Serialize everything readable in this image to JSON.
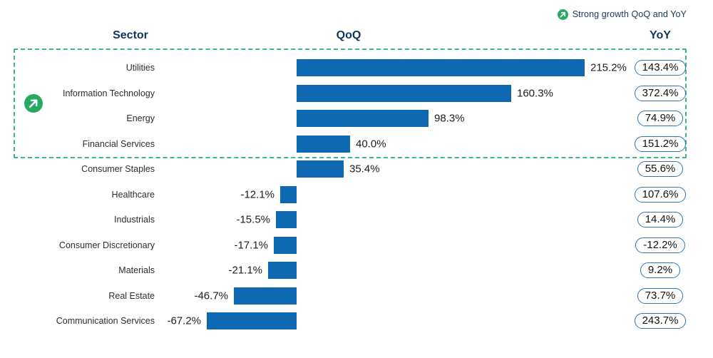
{
  "legend": {
    "icon": "arrow-up-right-icon",
    "label": "Strong growth QoQ and YoY"
  },
  "headers": {
    "sector": "Sector",
    "qoq": "QoQ",
    "yoy": "YoY"
  },
  "colors": {
    "bar_blue": "#0f69b2",
    "header_navy": "#10365e",
    "highlight_box_dash": "#3cb48c",
    "icon_green": "#27a963",
    "badge_border_blue": "#2e75b6"
  },
  "rows": [
    {
      "sector": "Utilities",
      "qoq": 215.2,
      "qoq_label": "215.2%",
      "yoy_label": "143.4%",
      "highlighted": true
    },
    {
      "sector": "Information Technology",
      "qoq": 160.3,
      "qoq_label": "160.3%",
      "yoy_label": "372.4%",
      "highlighted": true
    },
    {
      "sector": "Energy",
      "qoq": 98.3,
      "qoq_label": "98.3%",
      "yoy_label": "74.9%",
      "highlighted": true
    },
    {
      "sector": "Financial Services",
      "qoq": 40.0,
      "qoq_label": "40.0%",
      "yoy_label": "151.2%",
      "highlighted": true
    },
    {
      "sector": "Consumer Staples",
      "qoq": 35.4,
      "qoq_label": "35.4%",
      "yoy_label": "55.6%",
      "highlighted": false
    },
    {
      "sector": "Healthcare",
      "qoq": -12.1,
      "qoq_label": "-12.1%",
      "yoy_label": "107.6%",
      "highlighted": false
    },
    {
      "sector": "Industrials",
      "qoq": -15.5,
      "qoq_label": "-15.5%",
      "yoy_label": "14.4%",
      "highlighted": false
    },
    {
      "sector": "Consumer Discretionary",
      "qoq": -17.1,
      "qoq_label": "-17.1%",
      "yoy_label": "-12.2%",
      "highlighted": false
    },
    {
      "sector": "Materials",
      "qoq": -21.1,
      "qoq_label": "-21.1%",
      "yoy_label": "9.2%",
      "highlighted": false
    },
    {
      "sector": "Real Estate",
      "qoq": -46.7,
      "qoq_label": "-46.7%",
      "yoy_label": "73.7%",
      "highlighted": false
    },
    {
      "sector": "Communication Services",
      "qoq": -67.2,
      "qoq_label": "-67.2%",
      "yoy_label": "243.7%",
      "highlighted": false
    }
  ],
  "chart_data": {
    "type": "bar",
    "orientation": "horizontal",
    "title": "",
    "categories": [
      "Utilities",
      "Information Technology",
      "Energy",
      "Financial Services",
      "Consumer Staples",
      "Healthcare",
      "Industrials",
      "Consumer Discretionary",
      "Materials",
      "Real Estate",
      "Communication Services"
    ],
    "series": [
      {
        "name": "QoQ",
        "values": [
          215.2,
          160.3,
          98.3,
          40.0,
          35.4,
          -12.1,
          -15.5,
          -17.1,
          -21.1,
          -46.7,
          -67.2
        ],
        "representation": "bars-with-data-labels"
      },
      {
        "name": "YoY",
        "values": [
          143.4,
          372.4,
          74.9,
          151.2,
          55.6,
          107.6,
          14.4,
          -12.2,
          9.2,
          73.7,
          243.7
        ],
        "representation": "outlined-pill-labels"
      }
    ],
    "value_suffix": "%",
    "column_headers": [
      "Sector",
      "QoQ",
      "YoY"
    ],
    "annotations": [
      "Strong growth QoQ and YoY"
    ],
    "highlighted_categories": [
      "Utilities",
      "Information Technology",
      "Energy",
      "Financial Services"
    ],
    "grid": false,
    "legend_position": "top-right",
    "xlim_qoq": [
      -100,
      240
    ]
  }
}
